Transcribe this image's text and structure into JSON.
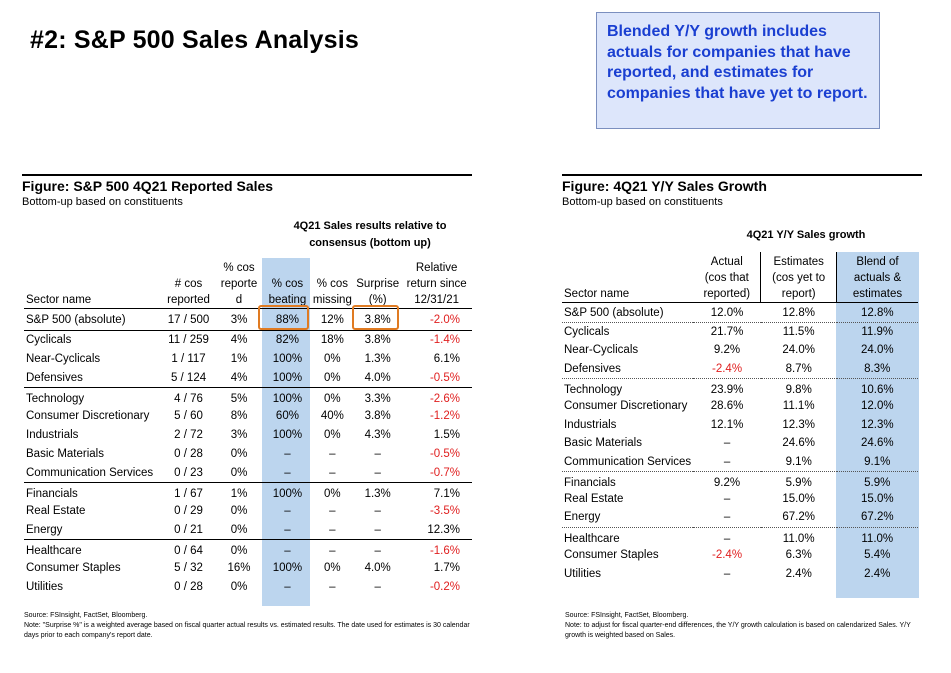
{
  "page_title": "#2: S&P 500 Sales Analysis",
  "callout": "Blended Y/Y growth includes actuals for companies that have reported, and estimates for companies that have yet to report.",
  "left_figure": {
    "title": "Figure: S&P 500 4Q21 Reported Sales",
    "subtitle": "Bottom-up based on constituents",
    "group_header": "4Q21 Sales results relative to consensus (bottom up)",
    "headers": [
      "Sector name",
      "# cos reported",
      "% cos reported",
      "% cos beating",
      "% cos missing",
      "Surprise (%)",
      "Relative return since 12/31/21"
    ],
    "rows": [
      [
        "S&P 500 (absolute)",
        "17 / 500",
        "3%",
        "88%",
        "12%",
        "3.8%",
        "-2.0%"
      ],
      [
        "Cyclicals",
        "11 / 259",
        "4%",
        "82%",
        "18%",
        "3.8%",
        "-1.4%"
      ],
      [
        "Near-Cyclicals",
        "1 / 117",
        "1%",
        "100%",
        "0%",
        "1.3%",
        "6.1%"
      ],
      [
        "Defensives",
        "5 / 124",
        "4%",
        "100%",
        "0%",
        "4.0%",
        "-0.5%"
      ],
      [
        "Technology",
        "4 / 76",
        "5%",
        "100%",
        "0%",
        "3.3%",
        "-2.6%"
      ],
      [
        "Consumer Discretionary",
        "5 / 60",
        "8%",
        "60%",
        "40%",
        "3.8%",
        "-1.2%"
      ],
      [
        "Industrials",
        "2 / 72",
        "3%",
        "100%",
        "0%",
        "4.3%",
        "1.5%"
      ],
      [
        "Basic Materials",
        "0 / 28",
        "0%",
        "–",
        "–",
        "–",
        "-0.5%"
      ],
      [
        "Communication Services",
        "0 / 23",
        "0%",
        "–",
        "–",
        "–",
        "-0.7%"
      ],
      [
        "Financials",
        "1 / 67",
        "1%",
        "100%",
        "0%",
        "1.3%",
        "7.1%"
      ],
      [
        "Real Estate",
        "0 / 29",
        "0%",
        "–",
        "–",
        "–",
        "-3.5%"
      ],
      [
        "Energy",
        "0 / 21",
        "0%",
        "–",
        "–",
        "–",
        "12.3%"
      ],
      [
        "Healthcare",
        "0 / 64",
        "0%",
        "–",
        "–",
        "–",
        "-1.6%"
      ],
      [
        "Consumer Staples",
        "5 / 32",
        "16%",
        "100%",
        "0%",
        "4.0%",
        "1.7%"
      ],
      [
        "Utilities",
        "0 / 28",
        "0%",
        "–",
        "–",
        "–",
        "-0.2%"
      ]
    ],
    "source": "Source: FSInsight, FactSet, Bloomberg.",
    "note": "Note: \"Surprise %\" is a weighted average based on fiscal quarter actual results vs. estimated results.  The date used for estimates is 30 calendar days prior to each company's report date."
  },
  "right_figure": {
    "title": "Figure: 4Q21 Y/Y Sales Growth",
    "subtitle": "Bottom-up based on constituents",
    "group_header": "4Q21 Y/Y Sales growth",
    "headers": [
      "Sector name",
      "Actual (cos that reported)",
      "Estimates (cos yet to report)",
      "Blend of actuals & estimates"
    ],
    "rows": [
      [
        "S&P 500 (absolute)",
        "12.0%",
        "12.8%",
        "12.8%"
      ],
      [
        "Cyclicals",
        "21.7%",
        "11.5%",
        "11.9%"
      ],
      [
        "Near-Cyclicals",
        "9.2%",
        "24.0%",
        "24.0%"
      ],
      [
        "Defensives",
        "-2.4%",
        "8.7%",
        "8.3%"
      ],
      [
        "Technology",
        "23.9%",
        "9.8%",
        "10.6%"
      ],
      [
        "Consumer Discretionary",
        "28.6%",
        "11.1%",
        "12.0%"
      ],
      [
        "Industrials",
        "12.1%",
        "12.3%",
        "12.3%"
      ],
      [
        "Basic Materials",
        "–",
        "24.6%",
        "24.6%"
      ],
      [
        "Communication Services",
        "–",
        "9.1%",
        "9.1%"
      ],
      [
        "Financials",
        "9.2%",
        "5.9%",
        "5.9%"
      ],
      [
        "Real Estate",
        "–",
        "15.0%",
        "15.0%"
      ],
      [
        "Energy",
        "–",
        "67.2%",
        "67.2%"
      ],
      [
        "Healthcare",
        "–",
        "11.0%",
        "11.0%"
      ],
      [
        "Consumer Staples",
        "-2.4%",
        "6.3%",
        "5.4%"
      ],
      [
        "Utilities",
        "–",
        "2.4%",
        "2.4%"
      ]
    ],
    "source": "Source: FSInsight, FactSet, Bloomberg.",
    "note": "Note: to adjust for fiscal quarter-end differences, the Y/Y growth calculation is based on calendarized Sales. Y/Y growth is weighted based on Sales."
  },
  "colors": {
    "highlight": "#bcd5ee",
    "negative": "#e02020",
    "callout_text": "#1a3fd1",
    "callout_bg": "#dde6fb",
    "box": "#e07b22"
  }
}
